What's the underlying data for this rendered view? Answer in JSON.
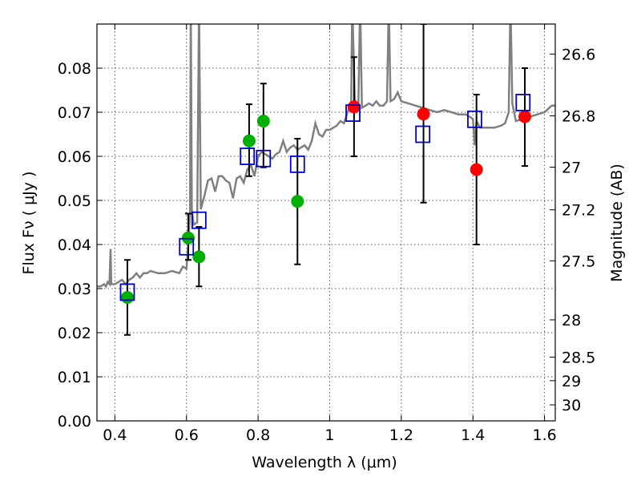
{
  "chart_data": {
    "type": "scatter",
    "title": "",
    "xlabel": "Wavelength  λ (μm)",
    "ylabel": "Flux  Fν  ( μJy )",
    "right_ylabel": "Magnitude (AB)",
    "xlim": [
      0.35,
      1.63
    ],
    "ylim": [
      0.0,
      0.09
    ],
    "grid": true,
    "x_ticks": [
      {
        "value": 0.4,
        "label": "0.4"
      },
      {
        "value": 0.6,
        "label": "0.6"
      },
      {
        "value": 0.8,
        "label": "0.8"
      },
      {
        "value": 1.0,
        "label": "1"
      },
      {
        "value": 1.2,
        "label": "1.2"
      },
      {
        "value": 1.4,
        "label": "1.4"
      },
      {
        "value": 1.6,
        "label": "1.6"
      }
    ],
    "y_ticks": [
      {
        "value": 0.0,
        "label": "0.00"
      },
      {
        "value": 0.01,
        "label": "0.01"
      },
      {
        "value": 0.02,
        "label": "0.02"
      },
      {
        "value": 0.03,
        "label": "0.03"
      },
      {
        "value": 0.04,
        "label": "0.04"
      },
      {
        "value": 0.05,
        "label": "0.05"
      },
      {
        "value": 0.06,
        "label": "0.06"
      },
      {
        "value": 0.07,
        "label": "0.07"
      },
      {
        "value": 0.08,
        "label": "0.08"
      }
    ],
    "right_ticks": [
      {
        "mag": 26.6,
        "label": "26.6"
      },
      {
        "mag": 26.8,
        "label": "26.8"
      },
      {
        "mag": 27.0,
        "label": "27"
      },
      {
        "mag": 27.2,
        "label": "27.2"
      },
      {
        "mag": 27.5,
        "label": "27.5"
      },
      {
        "mag": 28.0,
        "label": "28"
      },
      {
        "mag": 28.5,
        "label": "28.5"
      },
      {
        "mag": 29.0,
        "label": "29"
      },
      {
        "mag": 30.0,
        "label": "30"
      }
    ],
    "colors": {
      "spectrum": "#808080",
      "model": "#0000cc",
      "green": "#00b000",
      "red": "#ff0000",
      "errorbar": "#000000",
      "grid": "#555555"
    },
    "spectrum": {
      "name": "",
      "points": [
        [
          0.35,
          0.0305
        ],
        [
          0.36,
          0.0305
        ],
        [
          0.37,
          0.031
        ],
        [
          0.375,
          0.0305
        ],
        [
          0.38,
          0.0315
        ],
        [
          0.385,
          0.031
        ],
        [
          0.388,
          0.039
        ],
        [
          0.39,
          0.031
        ],
        [
          0.4,
          0.031
        ],
        [
          0.41,
          0.0315
        ],
        [
          0.42,
          0.032
        ],
        [
          0.43,
          0.031
        ],
        [
          0.44,
          0.032
        ],
        [
          0.45,
          0.0325
        ],
        [
          0.46,
          0.0335
        ],
        [
          0.47,
          0.0325
        ],
        [
          0.48,
          0.0335
        ],
        [
          0.49,
          0.0335
        ],
        [
          0.5,
          0.034
        ],
        [
          0.52,
          0.0335
        ],
        [
          0.54,
          0.0335
        ],
        [
          0.56,
          0.034
        ],
        [
          0.58,
          0.0335
        ],
        [
          0.59,
          0.035
        ],
        [
          0.6,
          0.0345
        ],
        [
          0.605,
          0.04
        ],
        [
          0.61,
          0.047
        ],
        [
          0.612,
          0.095
        ],
        [
          0.615,
          0.048
        ],
        [
          0.62,
          0.0445
        ],
        [
          0.63,
          0.045
        ],
        [
          0.635,
          0.095
        ],
        [
          0.64,
          0.048
        ],
        [
          0.65,
          0.051
        ],
        [
          0.66,
          0.0545
        ],
        [
          0.67,
          0.055
        ],
        [
          0.68,
          0.052
        ],
        [
          0.69,
          0.0555
        ],
        [
          0.7,
          0.0555
        ],
        [
          0.71,
          0.0545
        ],
        [
          0.72,
          0.054
        ],
        [
          0.73,
          0.0505
        ],
        [
          0.74,
          0.055
        ],
        [
          0.75,
          0.0555
        ],
        [
          0.76,
          0.054
        ],
        [
          0.77,
          0.057
        ],
        [
          0.78,
          0.058
        ],
        [
          0.79,
          0.0555
        ],
        [
          0.8,
          0.06
        ],
        [
          0.81,
          0.061
        ],
        [
          0.82,
          0.0605
        ],
        [
          0.83,
          0.06
        ],
        [
          0.84,
          0.0595
        ],
        [
          0.85,
          0.0605
        ],
        [
          0.86,
          0.061
        ],
        [
          0.87,
          0.0635
        ],
        [
          0.88,
          0.061
        ],
        [
          0.89,
          0.062
        ],
        [
          0.9,
          0.0625
        ],
        [
          0.91,
          0.0615
        ],
        [
          0.92,
          0.062
        ],
        [
          0.93,
          0.0625
        ],
        [
          0.94,
          0.0615
        ],
        [
          0.95,
          0.0635
        ],
        [
          0.96,
          0.0675
        ],
        [
          0.97,
          0.065
        ],
        [
          0.98,
          0.0645
        ],
        [
          0.99,
          0.066
        ],
        [
          1.0,
          0.066
        ],
        [
          1.01,
          0.0665
        ],
        [
          1.02,
          0.067
        ],
        [
          1.03,
          0.068
        ],
        [
          1.04,
          0.0675
        ],
        [
          1.05,
          0.07
        ],
        [
          1.06,
          0.072
        ],
        [
          1.063,
          0.095
        ],
        [
          1.07,
          0.073
        ],
        [
          1.08,
          0.071
        ],
        [
          1.085,
          0.095
        ],
        [
          1.09,
          0.071
        ],
        [
          1.1,
          0.0715
        ],
        [
          1.11,
          0.072
        ],
        [
          1.12,
          0.0715
        ],
        [
          1.13,
          0.0725
        ],
        [
          1.14,
          0.0715
        ],
        [
          1.15,
          0.0715
        ],
        [
          1.16,
          0.0725
        ],
        [
          1.165,
          0.095
        ],
        [
          1.17,
          0.0725
        ],
        [
          1.18,
          0.073
        ],
        [
          1.19,
          0.0745
        ],
        [
          1.2,
          0.0725
        ],
        [
          1.22,
          0.072
        ],
        [
          1.24,
          0.0715
        ],
        [
          1.26,
          0.071
        ],
        [
          1.28,
          0.0705
        ],
        [
          1.3,
          0.07
        ],
        [
          1.32,
          0.0705
        ],
        [
          1.34,
          0.07
        ],
        [
          1.36,
          0.0695
        ],
        [
          1.38,
          0.0695
        ],
        [
          1.4,
          0.0685
        ],
        [
          1.405,
          0.0625
        ],
        [
          1.41,
          0.068
        ],
        [
          1.42,
          0.0665
        ],
        [
          1.44,
          0.0665
        ],
        [
          1.46,
          0.0665
        ],
        [
          1.48,
          0.067
        ],
        [
          1.49,
          0.0675
        ],
        [
          1.5,
          0.07
        ],
        [
          1.505,
          0.095
        ],
        [
          1.51,
          0.072
        ],
        [
          1.52,
          0.068
        ],
        [
          1.54,
          0.0685
        ],
        [
          1.56,
          0.069
        ],
        [
          1.58,
          0.0695
        ],
        [
          1.6,
          0.07
        ],
        [
          1.62,
          0.0715
        ],
        [
          1.63,
          0.0715
        ]
      ]
    },
    "model_points": {
      "name": "",
      "marker": "open-square",
      "points": [
        [
          0.435,
          0.0292
        ],
        [
          0.6,
          0.0395
        ],
        [
          0.635,
          0.0455
        ],
        [
          0.77,
          0.06
        ],
        [
          0.815,
          0.0595
        ],
        [
          0.91,
          0.0582
        ],
        [
          1.065,
          0.0698
        ],
        [
          1.26,
          0.065
        ],
        [
          1.405,
          0.0684
        ],
        [
          1.54,
          0.0722
        ]
      ]
    },
    "observed_points": {
      "name": "",
      "marker": "filled-circle",
      "points": [
        {
          "x": 0.435,
          "y": 0.028,
          "err_low": 0.0195,
          "err_high": 0.0365,
          "color": "green"
        },
        {
          "x": 0.605,
          "y": 0.0415,
          "err_low": 0.0365,
          "err_high": 0.047,
          "color": "green"
        },
        {
          "x": 0.635,
          "y": 0.0372,
          "err_low": 0.0305,
          "err_high": 0.044,
          "color": "green"
        },
        {
          "x": 0.775,
          "y": 0.0635,
          "err_low": 0.0555,
          "err_high": 0.0718,
          "color": "green"
        },
        {
          "x": 0.815,
          "y": 0.068,
          "err_low": 0.0575,
          "err_high": 0.0765,
          "color": "green"
        },
        {
          "x": 0.91,
          "y": 0.0498,
          "err_low": 0.0355,
          "err_high": 0.064,
          "color": "green"
        },
        {
          "x": 1.068,
          "y": 0.0712,
          "err_low": 0.06,
          "err_high": 0.0825,
          "color": "red"
        },
        {
          "x": 1.262,
          "y": 0.0696,
          "err_low": 0.0495,
          "err_high": 0.09,
          "color": "red"
        },
        {
          "x": 1.41,
          "y": 0.057,
          "err_low": 0.04,
          "err_high": 0.074,
          "color": "red"
        },
        {
          "x": 1.545,
          "y": 0.069,
          "err_low": 0.0578,
          "err_high": 0.08,
          "color": "red"
        }
      ]
    }
  }
}
